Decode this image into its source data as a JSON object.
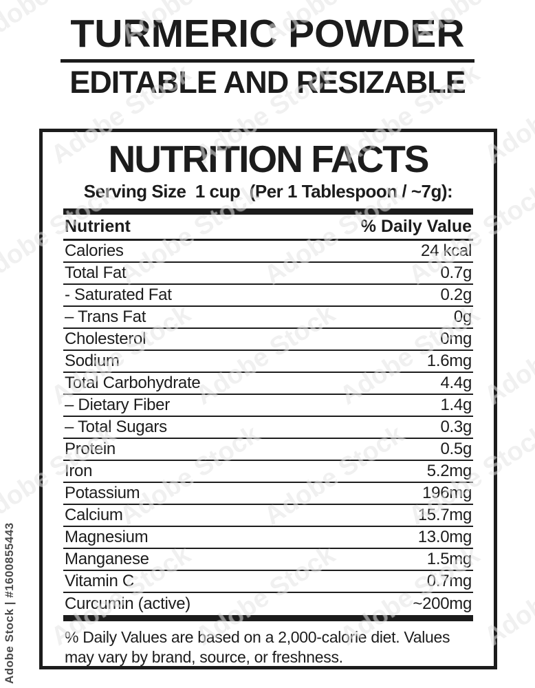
{
  "page": {
    "title": "TURMERIC POWDER",
    "subtitle": "EDITABLE AND RESIZABLE"
  },
  "label": {
    "title": "NUTRITION FACTS",
    "serving_line": "Serving Size  1 cup  (Per 1 Tablespoon / ~7g):",
    "columns": {
      "nutrient": "Nutrient",
      "daily_value": "% Daily Value"
    },
    "rows": [
      {
        "nutrient": "Calories",
        "value": "24 kcal"
      },
      {
        "nutrient": "Total Fat",
        "value": "0.7g"
      },
      {
        "nutrient": "- Saturated Fat",
        "value": "0.2g"
      },
      {
        "nutrient": "– Trans Fat",
        "value": "0g"
      },
      {
        "nutrient": "Cholesterol",
        "value": "0mg"
      },
      {
        "nutrient": "Sodium",
        "value": "1.6mg"
      },
      {
        "nutrient": "Total Carbohydrate",
        "value": "4.4g"
      },
      {
        "nutrient": "– Dietary Fiber",
        "value": "1.4g"
      },
      {
        "nutrient": "– Total Sugars",
        "value": "0.3g"
      },
      {
        "nutrient": "Protein",
        "value": "0.5g"
      },
      {
        "nutrient": "Iron",
        "value": "5.2mg"
      },
      {
        "nutrient": "Potassium",
        "value": "196mg"
      },
      {
        "nutrient": "Calcium",
        "value": "15.7mg"
      },
      {
        "nutrient": "Magnesium",
        "value": "13.0mg"
      },
      {
        "nutrient": "Manganese",
        "value": "1.5mg"
      },
      {
        "nutrient": "Vitamin C",
        "value": "0.7mg"
      },
      {
        "nutrient": "Curcumin (active)",
        "value": "~200mg"
      }
    ],
    "footnote": "% Daily Values are based on a 2,000-calorie diet. Values may vary by brand, source, or freshness."
  },
  "watermark": {
    "tile_text": "Adobe Stock",
    "credit_text": "Adobe Stock | #1600855443"
  },
  "colors": {
    "ink": "#1c1c1c",
    "background": "#ffffff",
    "watermark_gray": "#787878"
  }
}
